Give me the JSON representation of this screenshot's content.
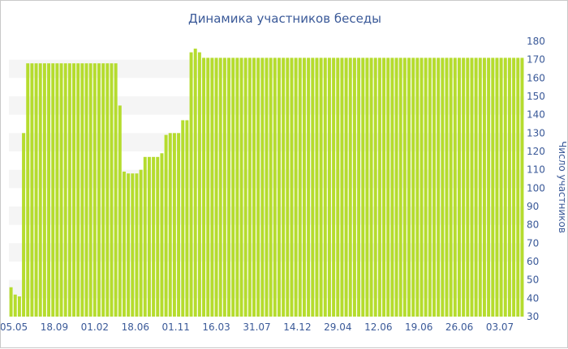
{
  "chart_data": {
    "type": "bar",
    "title": "Динамика участников беседы",
    "xlabel": "",
    "ylabel": "Число участников",
    "ylim": [
      30,
      180
    ],
    "y_ticks": [
      30,
      40,
      50,
      60,
      70,
      80,
      90,
      100,
      110,
      120,
      130,
      140,
      150,
      160,
      170,
      180
    ],
    "y_axis_side": "right",
    "grid": "alternating horizontal bands",
    "x_tick_labels": [
      "05.05",
      "18.09",
      "01.02",
      "18.06",
      "01.11",
      "16.03",
      "31.07",
      "14.12",
      "29.04",
      "12.06",
      "19.06",
      "26.06",
      "03.07"
    ],
    "bar_color": "#b5dc2e",
    "values": [
      46,
      42,
      41,
      130,
      168,
      168,
      168,
      168,
      168,
      168,
      168,
      168,
      168,
      168,
      168,
      168,
      168,
      168,
      168,
      168,
      168,
      168,
      168,
      168,
      168,
      168,
      145,
      109,
      108,
      108,
      108,
      110,
      117,
      117,
      117,
      117,
      119,
      129,
      130,
      130,
      130,
      137,
      137,
      174,
      176,
      174,
      171,
      171,
      171,
      171,
      171,
      171,
      171,
      171,
      171,
      171,
      171,
      171,
      171,
      171,
      171,
      171,
      171,
      171,
      171,
      171,
      171,
      171,
      171,
      171,
      171,
      171,
      171,
      171,
      171,
      171,
      171,
      171,
      171,
      171,
      171,
      171,
      171,
      171,
      171,
      171,
      171,
      171,
      171,
      171,
      171,
      171,
      171,
      171,
      171,
      171,
      171,
      171,
      171,
      171,
      171,
      171,
      171,
      171,
      171,
      171,
      171,
      171,
      171,
      171,
      171,
      171,
      171,
      171,
      171,
      171,
      171,
      171,
      171,
      171,
      171,
      171,
      171
    ]
  }
}
